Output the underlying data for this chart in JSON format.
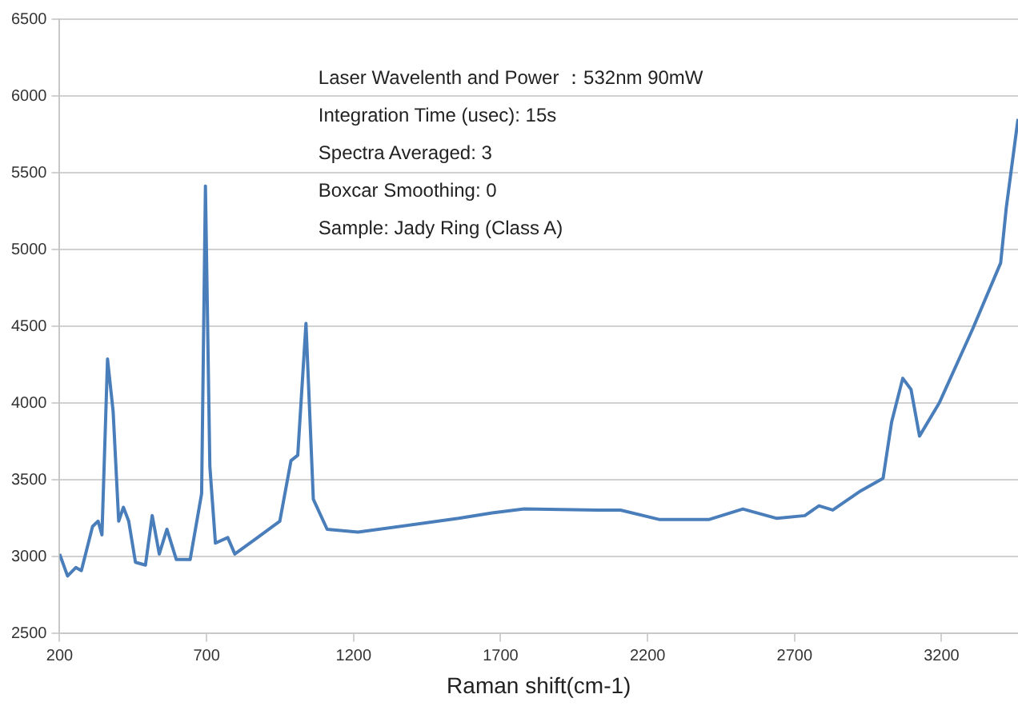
{
  "chart_data": {
    "type": "line",
    "xlabel": "Raman shift(cm-1)",
    "annotations": [
      "Laser Wavelenth and Power ：532nm 90mW",
      "Integration Time (usec): 15s",
      "Spectra Averaged: 3",
      "Boxcar Smoothing: 0",
      "Sample: Jady Ring (Class A)"
    ],
    "x": [
      200,
      227,
      255,
      274,
      312,
      331,
      344,
      363,
      382,
      401,
      417,
      435,
      458,
      492,
      515,
      539,
      565,
      597,
      644,
      683,
      696,
      711,
      730,
      772,
      796,
      873,
      949,
      987,
      1010,
      1038,
      1063,
      1110,
      1215,
      1557,
      1671,
      1780,
      2032,
      2108,
      2239,
      2410,
      2524,
      2640,
      2735,
      2783,
      2830,
      2925,
      3001,
      3030,
      3068,
      3096,
      3125,
      3192,
      3306,
      3401,
      3420,
      3460
    ],
    "series": [
      {
        "color": "#4a7ebb",
        "values": [
          3018,
          2875,
          2930,
          2910,
          3197,
          3232,
          3143,
          4287,
          3947,
          3232,
          3322,
          3232,
          2964,
          2946,
          3268,
          3018,
          3179,
          2982,
          2982,
          3411,
          5413,
          3590,
          3089,
          3125,
          3018,
          3125,
          3232,
          3626,
          3661,
          4519,
          3375,
          3179,
          3161,
          3250,
          3286,
          3311,
          3304,
          3304,
          3243,
          3243,
          3311,
          3250,
          3268,
          3332,
          3304,
          3429,
          3511,
          3876,
          4162,
          4090,
          3786,
          4001,
          4484,
          4913,
          5270,
          5850
        ]
      }
    ],
    "xlim": [
      200,
      3460
    ],
    "xticks": [
      200,
      700,
      1200,
      1700,
      2200,
      2700,
      3200
    ],
    "ylim": [
      2500,
      6500
    ],
    "yticks": [
      2500,
      3000,
      3500,
      4000,
      4500,
      5000,
      5500,
      6000,
      6500
    ],
    "grid": "y",
    "marker": "none",
    "line_style": "solid",
    "legend": false
  }
}
